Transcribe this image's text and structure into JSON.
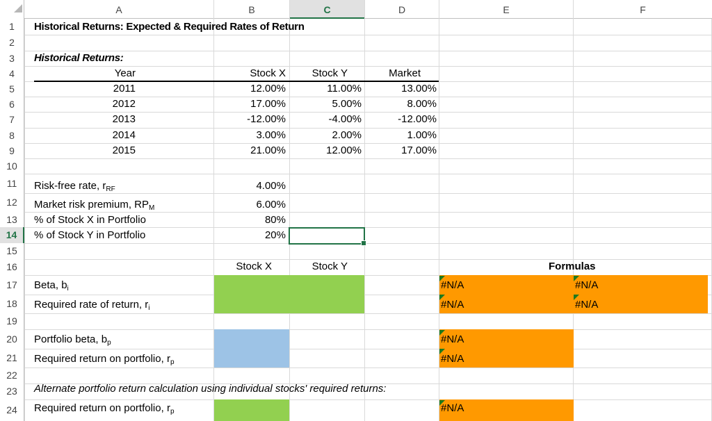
{
  "columns": [
    "A",
    "B",
    "C",
    "D",
    "E",
    "F"
  ],
  "rows": [
    "1",
    "2",
    "3",
    "4",
    "5",
    "6",
    "7",
    "8",
    "9",
    "10",
    "11",
    "12",
    "13",
    "14",
    "15",
    "16",
    "17",
    "18",
    "19",
    "20",
    "21",
    "22",
    "23",
    "24"
  ],
  "title": "Historical Returns: Expected & Required Rates of Return",
  "section_title": "Historical Returns:",
  "table": {
    "headers": [
      "Year",
      "Stock X",
      "Stock Y",
      "Market"
    ],
    "rows": [
      [
        "2011",
        "12.00%",
        "11.00%",
        "13.00%"
      ],
      [
        "2012",
        "17.00%",
        "5.00%",
        "8.00%"
      ],
      [
        "2013",
        "-12.00%",
        "-4.00%",
        "-12.00%"
      ],
      [
        "2014",
        "3.00%",
        "2.00%",
        "1.00%"
      ],
      [
        "2015",
        "21.00%",
        "12.00%",
        "17.00%"
      ]
    ]
  },
  "inputs": {
    "rf_label": "Risk-free rate, r",
    "rf_sub": "RF",
    "rf_value": "4.00%",
    "rp_label": "Market risk premium, RP",
    "rp_sub": "M",
    "rp_value": "6.00%",
    "x_pct_label": "% of Stock X in Portfolio",
    "x_pct_value": "80%",
    "y_pct_label": "% of Stock Y in Portfolio",
    "y_pct_value": "20%"
  },
  "calc": {
    "stock_x": "Stock X",
    "stock_y": "Stock Y",
    "formulas": "Formulas",
    "beta_label": "Beta, b",
    "beta_sub": "i",
    "req_label": "Required rate of return, r",
    "req_sub": "i",
    "pbeta_label": "Portfolio beta, b",
    "pbeta_sub": "p",
    "preq_label": "Required return on portfolio, r",
    "preq_sub": "p",
    "alt_label": "Alternate portfolio return calculation using individual stocks' required returns:",
    "alt_req_label": "Required return on portfolio, r",
    "alt_req_sub": "p",
    "na": "#N/A"
  }
}
